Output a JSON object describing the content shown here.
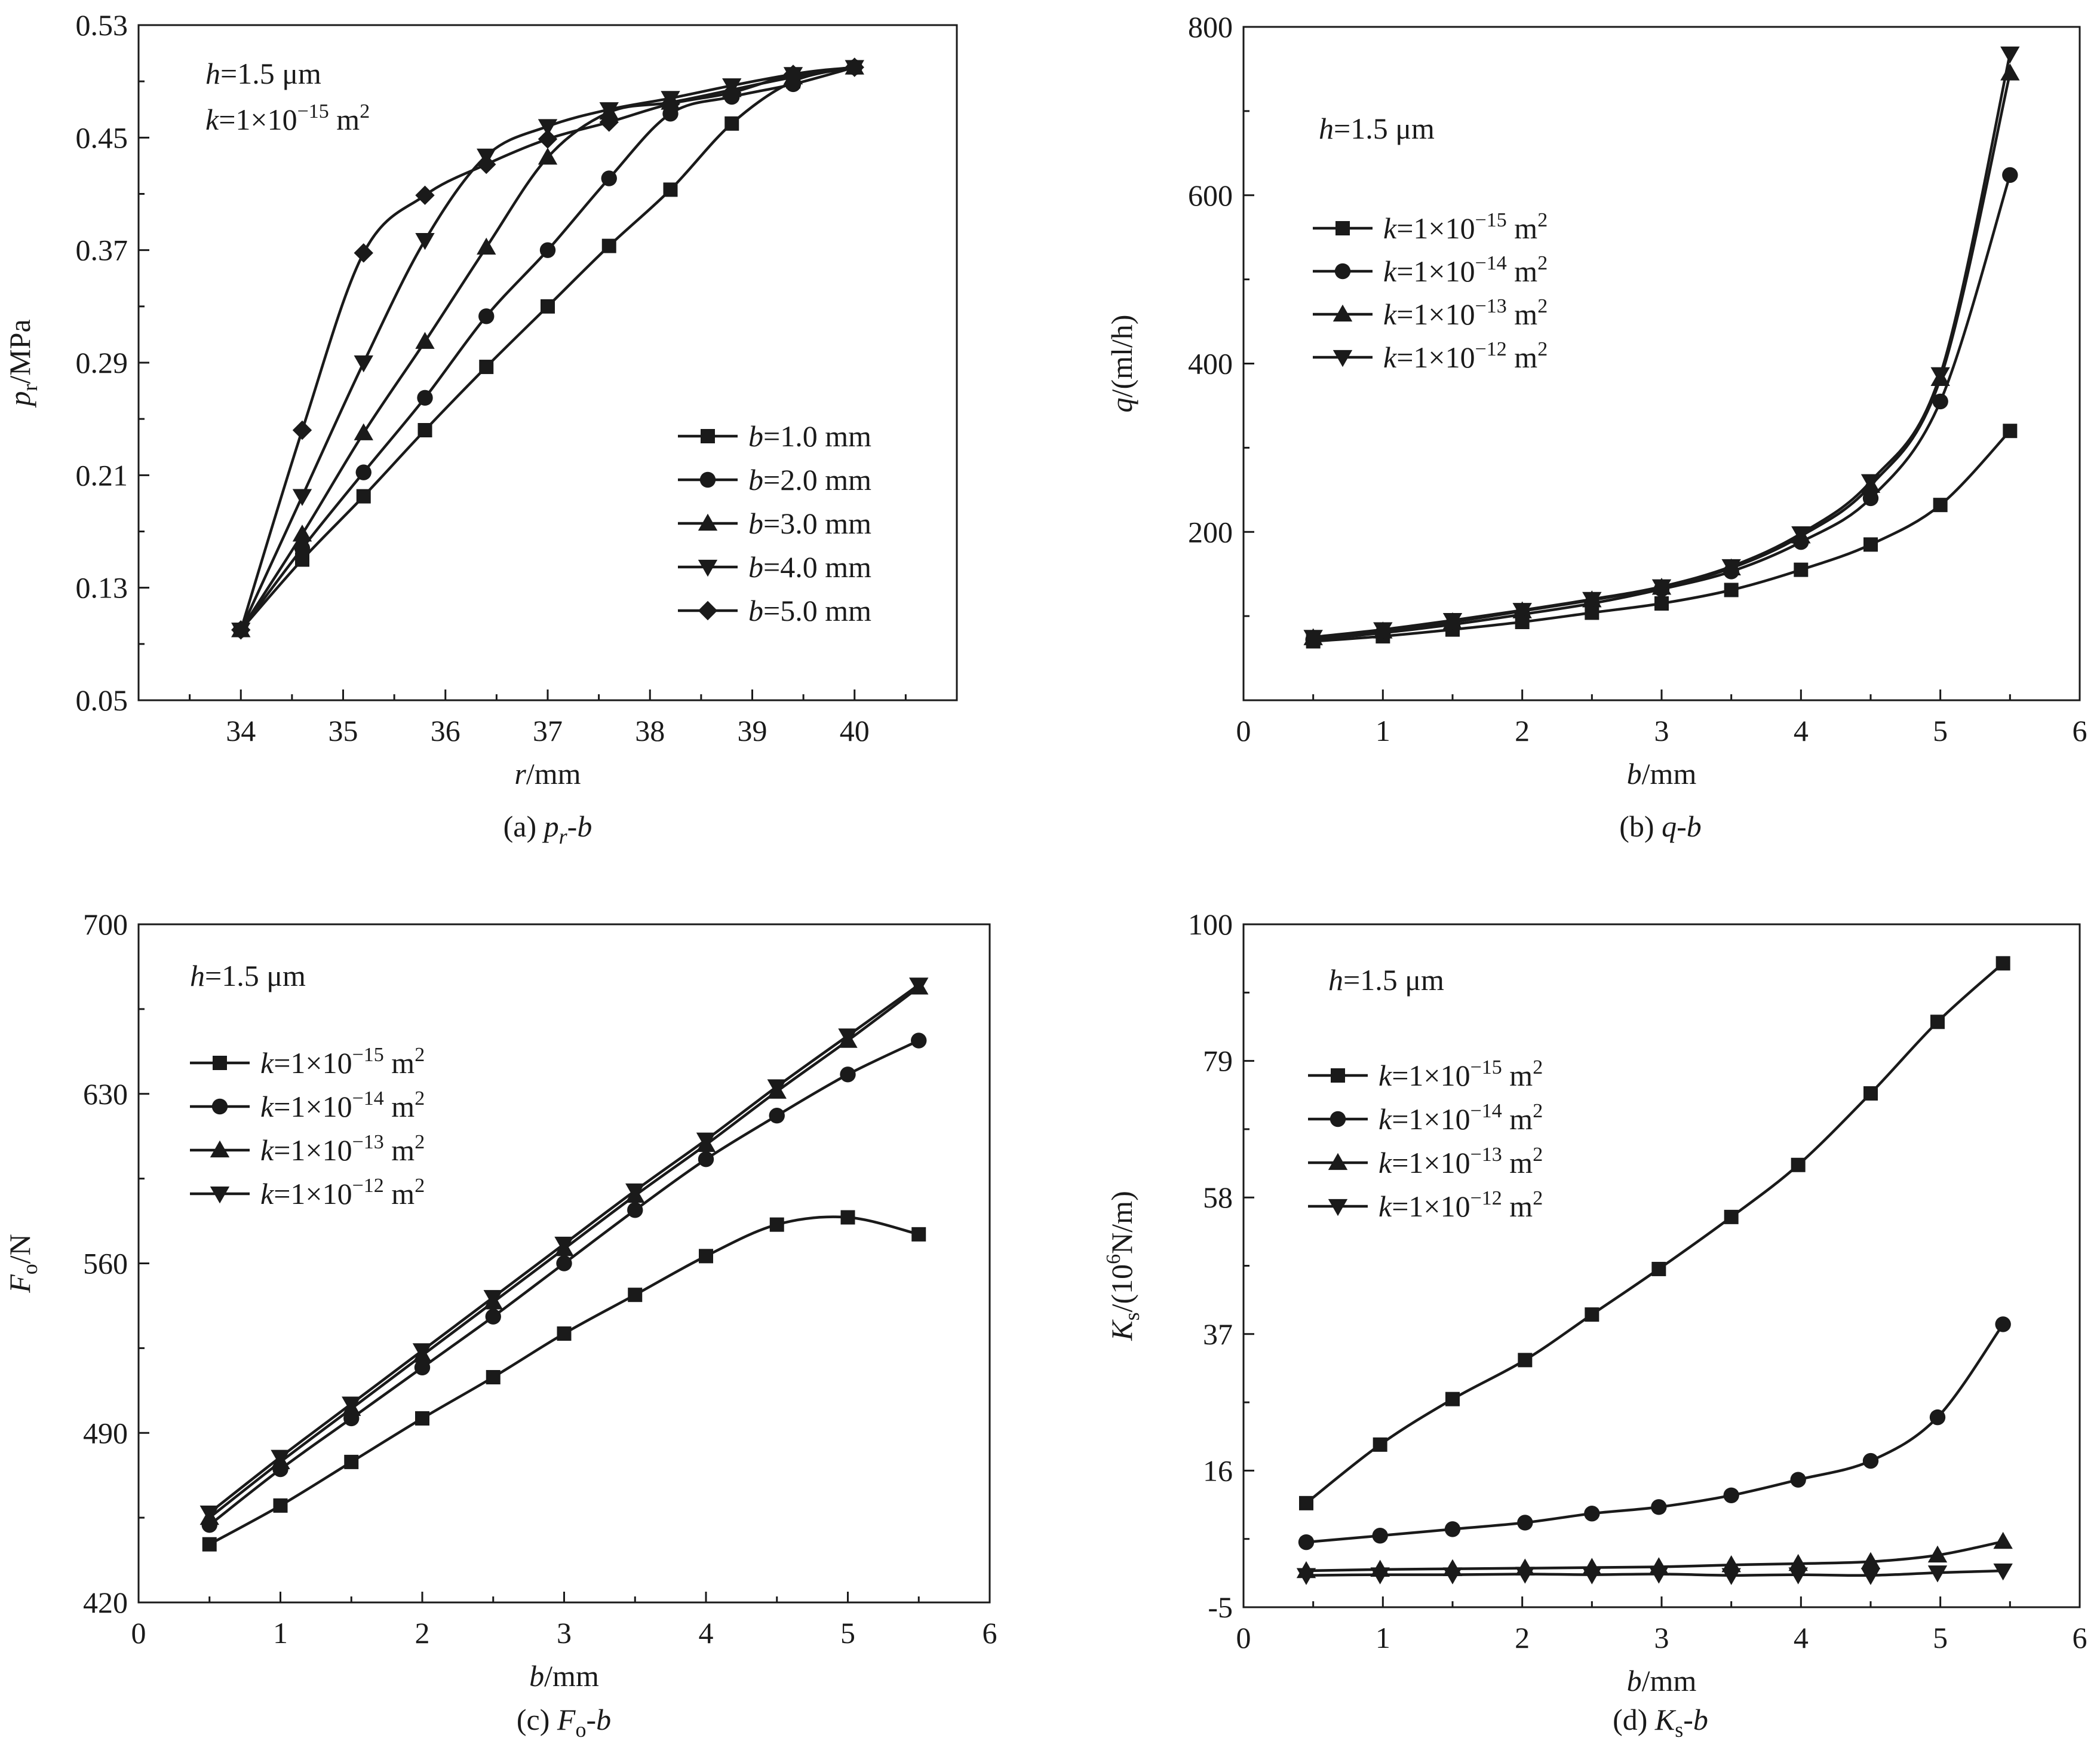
{
  "panels": [
    {
      "caption": "(a) p_r-b",
      "caption_parts": {
        "pre": "(a) ",
        "ital": "p",
        "sub": "r",
        "post": "-b"
      },
      "xlabel": {
        "ital": "r",
        "text": "/mm"
      },
      "ylabel": {
        "ital": "p",
        "sub": "r",
        "text": "/MPa"
      },
      "annotation": [
        {
          "ital": "h",
          "text": "=1.5 μm"
        },
        {
          "ital": "k",
          "text": "=1×10",
          "sup": "−15",
          "tail": " m",
          "sup2": "2"
        }
      ],
      "legend_pos": "bottom-right"
    },
    {
      "caption": "(b) q-b",
      "caption_parts": {
        "pre": "(b) ",
        "ital": "q",
        "post": "-b"
      },
      "xlabel": {
        "ital": "b",
        "text": "/mm"
      },
      "ylabel": {
        "ital": "q",
        "text": "/(ml/h)"
      },
      "annotation": [
        {
          "ital": "h",
          "text": "=1.5 μm"
        }
      ],
      "legend_pos": "top-left"
    },
    {
      "caption": "(c) F_o-b",
      "caption_parts": {
        "pre": "(c) ",
        "ital": "F",
        "sub": "o",
        "post": "-b"
      },
      "xlabel": {
        "ital": "b",
        "text": "/mm"
      },
      "ylabel": {
        "ital": "F",
        "sub": "o",
        "text": "/N"
      },
      "annotation": [
        {
          "ital": "h",
          "text": "=1.5 μm"
        }
      ],
      "legend_pos": "top-left"
    },
    {
      "caption": "(d) K_s-b",
      "caption_parts": {
        "pre": "(d) ",
        "ital": "K",
        "sub": "s",
        "post": "-b"
      },
      "xlabel": {
        "ital": "b",
        "text": "/mm"
      },
      "ylabel": {
        "ital": "K",
        "sub": "s",
        "text": "/(10",
        "sup": "6",
        "tail": "N/m)"
      },
      "annotation": [
        {
          "ital": "h",
          "text": "=1.5 μm"
        }
      ],
      "legend_pos": "top-left"
    }
  ],
  "chart_data": [
    {
      "type": "line",
      "title": "(a) pr-b",
      "xlabel": "r/mm",
      "ylabel": "pr/MPa",
      "xlim": [
        33,
        41
      ],
      "ylim": [
        0.05,
        0.53
      ],
      "xticks": [
        34,
        35,
        36,
        37,
        38,
        39,
        40
      ],
      "yticks": [
        0.05,
        0.13,
        0.21,
        0.29,
        0.37,
        0.45,
        0.53
      ],
      "series": [
        {
          "name": "b=1.0 mm",
          "marker": "square",
          "x": [
            34,
            34.6,
            35.2,
            35.8,
            36.4,
            37.0,
            37.6,
            38.2,
            38.8,
            39.4,
            40.0
          ],
          "y": [
            0.1,
            0.15,
            0.195,
            0.242,
            0.287,
            0.33,
            0.373,
            0.413,
            0.46,
            0.49,
            0.5
          ]
        },
        {
          "name": "b=2.0 mm",
          "marker": "circle",
          "x": [
            34,
            34.6,
            35.2,
            35.8,
            36.4,
            37.0,
            37.6,
            38.2,
            38.8,
            39.4,
            40.0
          ],
          "y": [
            0.1,
            0.158,
            0.212,
            0.265,
            0.323,
            0.37,
            0.421,
            0.467,
            0.479,
            0.488,
            0.5
          ]
        },
        {
          "name": "b=3.0 mm",
          "marker": "triangle-up",
          "x": [
            34,
            34.6,
            35.2,
            35.8,
            36.4,
            37.0,
            37.6,
            38.2,
            38.8,
            39.4,
            40.0
          ],
          "y": [
            0.1,
            0.168,
            0.24,
            0.305,
            0.372,
            0.436,
            0.468,
            0.475,
            0.484,
            0.493,
            0.5
          ]
        },
        {
          "name": "b=4.0 mm",
          "marker": "triangle-down",
          "x": [
            34,
            34.6,
            35.2,
            35.8,
            36.4,
            37.0,
            37.6,
            38.2,
            38.8,
            39.4,
            40.0
          ],
          "y": [
            0.1,
            0.195,
            0.29,
            0.377,
            0.437,
            0.458,
            0.47,
            0.478,
            0.487,
            0.495,
            0.5
          ]
        },
        {
          "name": "b=5.0 mm",
          "marker": "diamond",
          "x": [
            34,
            34.6,
            35.2,
            35.8,
            36.4,
            37.0,
            37.6,
            38.2,
            38.8,
            39.4,
            40.0
          ],
          "y": [
            0.1,
            0.242,
            0.368,
            0.409,
            0.431,
            0.449,
            0.461,
            0.474,
            0.482,
            0.495,
            0.5
          ]
        }
      ]
    },
    {
      "type": "line",
      "title": "(b) q-b",
      "xlabel": "b/mm",
      "ylabel": "q/(ml/h)",
      "xlim": [
        0,
        6
      ],
      "ylim": [
        0,
        800
      ],
      "xticks": [
        0,
        1,
        2,
        3,
        4,
        5,
        6
      ],
      "yticks": [
        200,
        400,
        600,
        800
      ],
      "yminor": [
        100,
        300,
        500,
        700
      ],
      "series": [
        {
          "name": "k=1×10^-15 m^2",
          "marker": "square",
          "x": [
            0.5,
            1,
            1.5,
            2,
            2.5,
            3,
            3.5,
            4,
            4.5,
            5,
            5.5
          ],
          "y": [
            70,
            76,
            84,
            93,
            104,
            115,
            131,
            155,
            185,
            232,
            320
          ]
        },
        {
          "name": "k=1×10^-14 m^2",
          "marker": "circle",
          "x": [
            0.5,
            1,
            1.5,
            2,
            2.5,
            3,
            3.5,
            4,
            4.5,
            5,
            5.5
          ],
          "y": [
            72,
            80,
            90,
            102,
            115,
            132,
            153,
            188,
            240,
            355,
            624
          ]
        },
        {
          "name": "k=1×10^-13 m^2",
          "marker": "triangle-up",
          "x": [
            0.5,
            1,
            1.5,
            2,
            2.5,
            3,
            3.5,
            4,
            4.5,
            5,
            5.5
          ],
          "y": [
            74,
            82,
            93,
            106,
            119,
            134,
            157,
            195,
            255,
            382,
            745
          ]
        },
        {
          "name": "k=1×10^-12 m^2",
          "marker": "triangle-down",
          "x": [
            0.5,
            1,
            1.5,
            2,
            2.5,
            3,
            3.5,
            4,
            4.5,
            5,
            5.5
          ],
          "y": [
            75,
            84,
            95,
            107,
            120,
            135,
            159,
            198,
            260,
            387,
            768
          ]
        }
      ]
    },
    {
      "type": "line",
      "title": "(c) Fo-b",
      "xlabel": "b/mm",
      "ylabel": "Fo/N",
      "xlim": [
        0,
        6
      ],
      "ylim": [
        420,
        700
      ],
      "xticks": [
        0,
        1,
        2,
        3,
        4,
        5,
        6
      ],
      "yticks": [
        420,
        490,
        560,
        630,
        700
      ],
      "series": [
        {
          "name": "k=1×10^-15 m^2",
          "marker": "square",
          "x": [
            0.5,
            1,
            1.5,
            2,
            2.5,
            3,
            3.5,
            4,
            4.5,
            5,
            5.5
          ],
          "y": [
            444,
            460,
            478,
            496,
            513,
            531,
            547,
            563,
            576,
            579,
            572
          ]
        },
        {
          "name": "k=1×10^-14 m^2",
          "marker": "circle",
          "x": [
            0.5,
            1,
            1.5,
            2,
            2.5,
            3,
            3.5,
            4,
            4.5,
            5,
            5.5
          ],
          "y": [
            452,
            475,
            496,
            517,
            538,
            560,
            582,
            603,
            621,
            638,
            652
          ]
        },
        {
          "name": "k=1×10^-13 m^2",
          "marker": "triangle-up",
          "x": [
            0.5,
            1,
            1.5,
            2,
            2.5,
            3,
            3.5,
            4,
            4.5,
            5,
            5.5
          ],
          "y": [
            455,
            478,
            500,
            522,
            544,
            566,
            588,
            609,
            631,
            652,
            674
          ]
        },
        {
          "name": "k=1×10^-12 m^2",
          "marker": "triangle-down",
          "x": [
            0.5,
            1,
            1.5,
            2,
            2.5,
            3,
            3.5,
            4,
            4.5,
            5,
            5.5
          ],
          "y": [
            457,
            480,
            502,
            524,
            546,
            568,
            590,
            611,
            633,
            654,
            675
          ]
        }
      ]
    },
    {
      "type": "line",
      "title": "(d) Ks-b",
      "xlabel": "b/mm",
      "ylabel": "Ks/(10^6N/m)",
      "xlim": [
        0,
        6
      ],
      "ylim": [
        -5,
        100
      ],
      "xticks": [
        0,
        1,
        2,
        3,
        4,
        5,
        6
      ],
      "yticks": [
        -5,
        16,
        37,
        58,
        79,
        100
      ],
      "series": [
        {
          "name": "k=1×10^-15 m^2",
          "marker": "square",
          "x": [
            0.45,
            0.98,
            1.5,
            2.02,
            2.5,
            2.98,
            3.5,
            3.98,
            4.5,
            4.98,
            5.45
          ],
          "y": [
            11,
            20,
            27,
            33,
            40,
            47,
            55,
            63,
            74,
            85,
            94
          ]
        },
        {
          "name": "k=1×10^-14 m^2",
          "marker": "circle",
          "x": [
            0.45,
            0.98,
            1.5,
            2.02,
            2.5,
            2.98,
            3.5,
            3.98,
            4.5,
            4.98,
            5.45
          ],
          "y": [
            5.0,
            6.0,
            7.0,
            8.0,
            9.4,
            10.4,
            12.2,
            14.6,
            17.5,
            24.2,
            38.5
          ]
        },
        {
          "name": "k=1×10^-13 m^2",
          "marker": "triangle-up",
          "x": [
            0.45,
            0.98,
            1.5,
            2.02,
            2.5,
            2.98,
            3.5,
            3.98,
            4.5,
            4.98,
            5.45
          ],
          "y": [
            0.6,
            0.8,
            0.9,
            1.0,
            1.1,
            1.2,
            1.5,
            1.7,
            2.0,
            3.0,
            5.1
          ]
        },
        {
          "name": "k=1×10^-12 m^2",
          "marker": "triangle-down",
          "x": [
            0.45,
            0.98,
            1.5,
            2.02,
            2.5,
            2.98,
            3.5,
            3.98,
            4.5,
            4.98,
            5.45
          ],
          "y": [
            -0.1,
            0.0,
            0.0,
            0.1,
            0.0,
            0.1,
            -0.1,
            0.0,
            -0.1,
            0.3,
            0.6
          ]
        }
      ]
    }
  ]
}
